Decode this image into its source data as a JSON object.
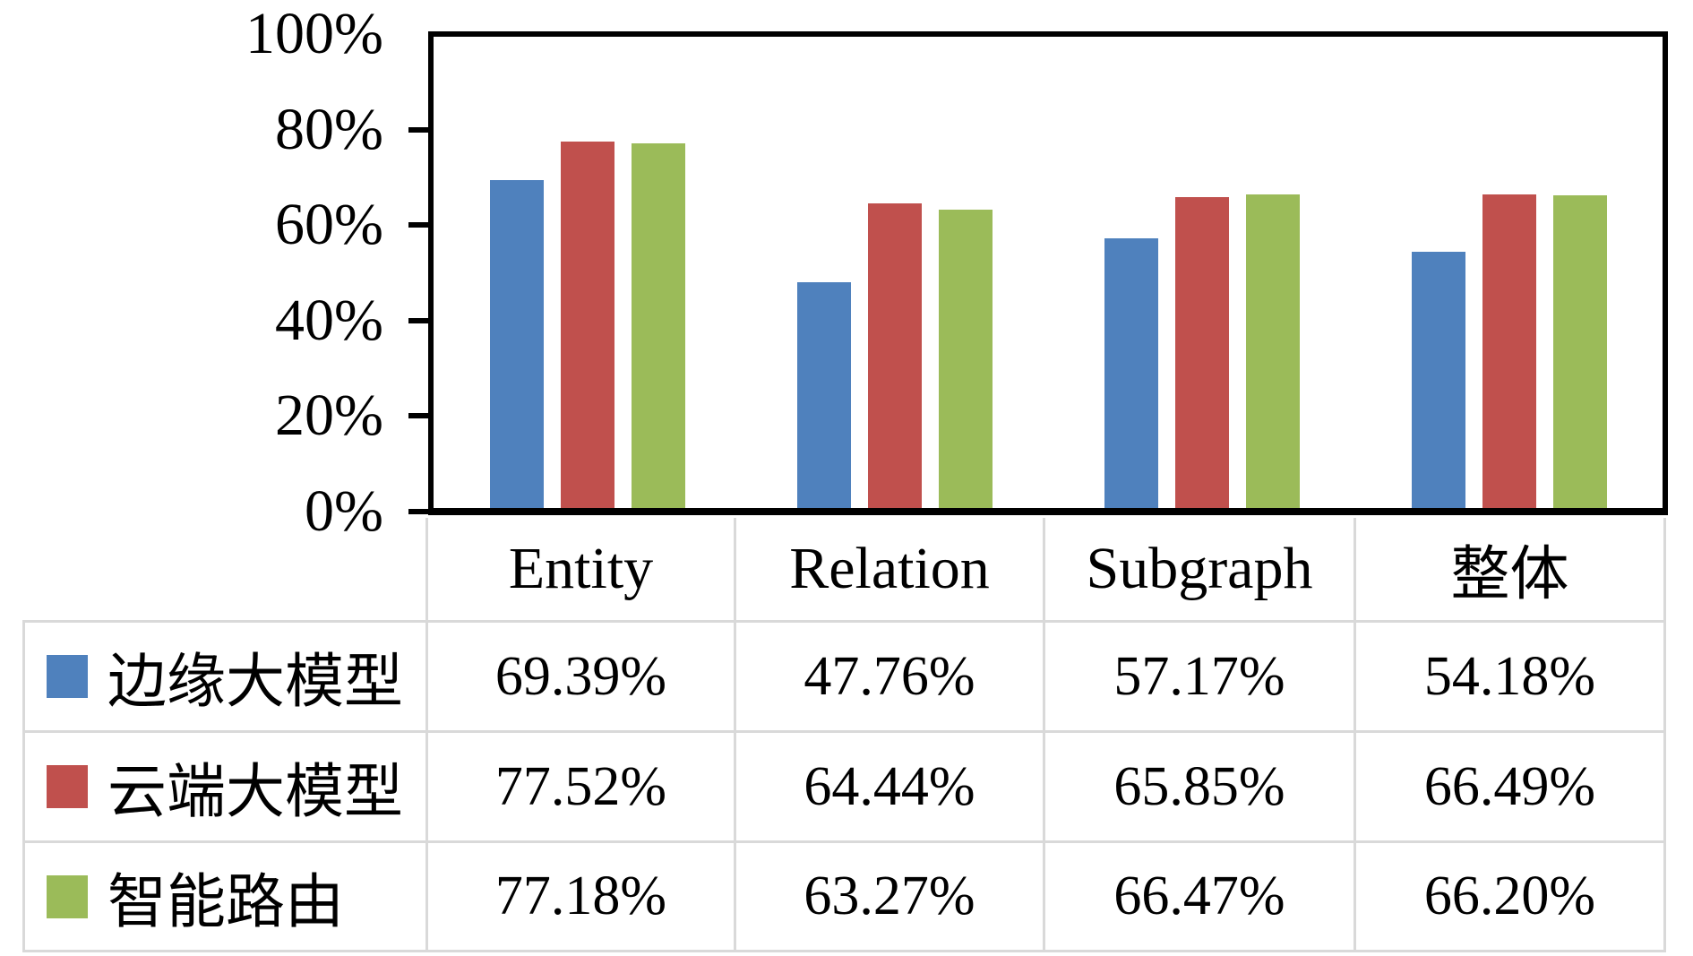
{
  "chart_data": {
    "type": "bar",
    "title": "",
    "xlabel": "",
    "ylabel": "",
    "categories": [
      "Entity",
      "Relation",
      "Subgraph",
      "整体"
    ],
    "series": [
      {
        "name": "边缘大模型",
        "color": "#4F81BD",
        "values": [
          69.39,
          47.76,
          57.17,
          54.18
        ]
      },
      {
        "name": "云端大模型",
        "color": "#C0504D",
        "values": [
          77.52,
          64.44,
          65.85,
          66.49
        ]
      },
      {
        "name": "智能路由",
        "color": "#9BBB59",
        "values": [
          77.18,
          63.27,
          66.47,
          66.2
        ]
      }
    ],
    "ylim": [
      0,
      100
    ],
    "y_ticks": [
      "0%",
      "20%",
      "40%",
      "60%",
      "80%",
      "100%"
    ],
    "value_unit": "%",
    "value_decimals": 2,
    "grid": false,
    "legend_position": "table-left",
    "axis_color": "#000000",
    "table_line_color": "#d9d9d9"
  }
}
